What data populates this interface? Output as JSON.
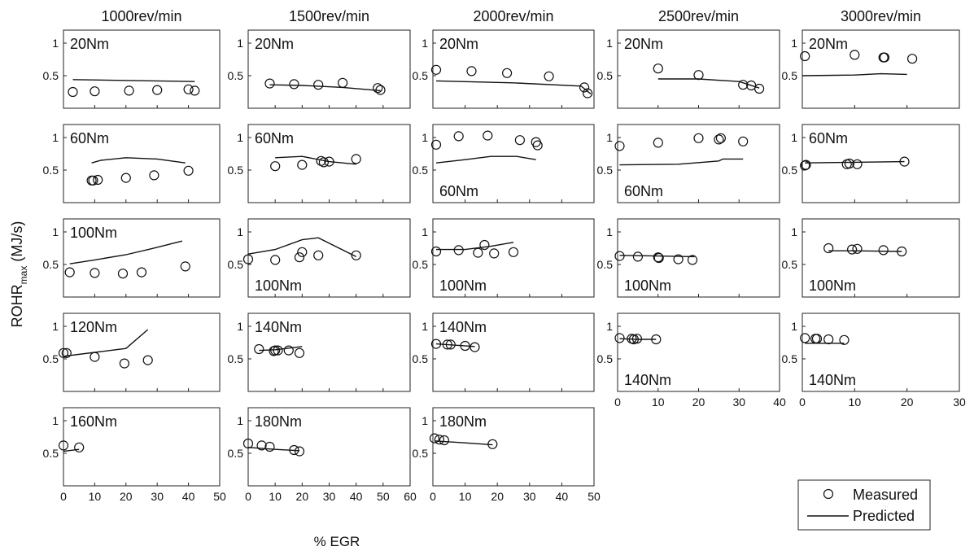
{
  "figure": {
    "ylabel_main": "ROHR",
    "ylabel_sub": "max",
    "ylabel_unit": " (MJ/s)",
    "xlabel": "% EGR",
    "legend": {
      "measured": "Measured",
      "predicted": "Predicted"
    }
  },
  "chart_data": [
    {
      "type": "scatter",
      "speed": "1000rev/min",
      "load": "20Nm",
      "label_pos": "top",
      "xlim": [
        0,
        50
      ],
      "ylim": [
        0,
        1.2
      ],
      "measured": [
        [
          3,
          0.25
        ],
        [
          10,
          0.26
        ],
        [
          21,
          0.27
        ],
        [
          30,
          0.28
        ],
        [
          40,
          0.29
        ],
        [
          42,
          0.27
        ]
      ],
      "predicted": [
        [
          3,
          0.44
        ],
        [
          42,
          0.41
        ]
      ]
    },
    {
      "type": "scatter",
      "speed": "1500rev/min",
      "load": "20Nm",
      "label_pos": "top",
      "xlim": [
        0,
        60
      ],
      "ylim": [
        0,
        1.2
      ],
      "measured": [
        [
          8,
          0.38
        ],
        [
          17,
          0.37
        ],
        [
          26,
          0.36
        ],
        [
          35,
          0.39
        ],
        [
          48,
          0.31
        ],
        [
          49,
          0.28
        ]
      ],
      "predicted": [
        [
          8,
          0.36
        ],
        [
          20,
          0.35
        ],
        [
          35,
          0.32
        ],
        [
          49,
          0.27
        ]
      ]
    },
    {
      "type": "scatter",
      "speed": "2000rev/min",
      "load": "20Nm",
      "label_pos": "top",
      "xlim": [
        0,
        50
      ],
      "ylim": [
        0,
        1.2
      ],
      "measured": [
        [
          1,
          0.59
        ],
        [
          12,
          0.57
        ],
        [
          23,
          0.54
        ],
        [
          36,
          0.49
        ],
        [
          47,
          0.32
        ],
        [
          48,
          0.23
        ]
      ],
      "predicted": [
        [
          1,
          0.42
        ],
        [
          25,
          0.39
        ],
        [
          46,
          0.34
        ],
        [
          49,
          0.22
        ]
      ]
    },
    {
      "type": "scatter",
      "speed": "2500rev/min",
      "load": "20Nm",
      "label_pos": "top",
      "xlim": [
        0,
        40
      ],
      "ylim": [
        0,
        1.2
      ],
      "measured": [
        [
          10,
          0.61
        ],
        [
          20,
          0.51
        ],
        [
          31,
          0.36
        ],
        [
          33,
          0.35
        ],
        [
          35,
          0.3
        ]
      ],
      "predicted": [
        [
          10,
          0.45
        ],
        [
          20,
          0.45
        ],
        [
          30,
          0.41
        ],
        [
          35,
          0.31
        ]
      ]
    },
    {
      "type": "scatter",
      "speed": "3000rev/min",
      "load": "20Nm",
      "label_pos": "top",
      "xlim": [
        0,
        30
      ],
      "ylim": [
        0,
        1.2
      ],
      "measured": [
        [
          0.5,
          0.8
        ],
        [
          10,
          0.82
        ],
        [
          15.5,
          0.78
        ],
        [
          15.7,
          0.78
        ],
        [
          21,
          0.76
        ]
      ],
      "predicted": [
        [
          0,
          0.5
        ],
        [
          10,
          0.51
        ],
        [
          15,
          0.53
        ],
        [
          20,
          0.52
        ]
      ]
    },
    {
      "type": "scatter",
      "speed": "1000rev/min",
      "load": "60Nm",
      "label_pos": "top",
      "xlim": [
        0,
        50
      ],
      "ylim": [
        0,
        1.2
      ],
      "measured": [
        [
          9,
          0.34
        ],
        [
          9.5,
          0.34
        ],
        [
          11,
          0.35
        ],
        [
          20,
          0.38
        ],
        [
          29,
          0.42
        ],
        [
          40,
          0.49
        ]
      ],
      "predicted": [
        [
          9,
          0.61
        ],
        [
          12,
          0.65
        ],
        [
          20,
          0.69
        ],
        [
          30,
          0.67
        ],
        [
          39,
          0.61
        ]
      ]
    },
    {
      "type": "scatter",
      "speed": "1500rev/min",
      "load": "60Nm",
      "label_pos": "top",
      "xlim": [
        0,
        60
      ],
      "ylim": [
        0,
        1.2
      ],
      "measured": [
        [
          10,
          0.56
        ],
        [
          20,
          0.58
        ],
        [
          27,
          0.64
        ],
        [
          28,
          0.62
        ],
        [
          30,
          0.63
        ],
        [
          40,
          0.67
        ]
      ],
      "predicted": [
        [
          10,
          0.69
        ],
        [
          20,
          0.71
        ],
        [
          30,
          0.63
        ],
        [
          40,
          0.59
        ]
      ]
    },
    {
      "type": "scatter",
      "speed": "2000rev/min",
      "load": "60Nm",
      "label_pos": "bottom",
      "xlim": [
        0,
        50
      ],
      "ylim": [
        0,
        1.2
      ],
      "measured": [
        [
          1,
          0.89
        ],
        [
          8,
          1.02
        ],
        [
          17,
          1.03
        ],
        [
          27,
          0.96
        ],
        [
          32,
          0.93
        ],
        [
          32.5,
          0.88
        ]
      ],
      "predicted": [
        [
          1,
          0.61
        ],
        [
          10,
          0.66
        ],
        [
          18,
          0.71
        ],
        [
          26,
          0.71
        ],
        [
          32,
          0.66
        ]
      ]
    },
    {
      "type": "scatter",
      "speed": "2500rev/min",
      "load": "60Nm",
      "label_pos": "bottom",
      "xlim": [
        0,
        40
      ],
      "ylim": [
        0,
        1.2
      ],
      "measured": [
        [
          0.5,
          0.87
        ],
        [
          10,
          0.92
        ],
        [
          20,
          0.99
        ],
        [
          25,
          0.97
        ],
        [
          25.5,
          0.99
        ],
        [
          31,
          0.94
        ]
      ],
      "predicted": [
        [
          0.5,
          0.58
        ],
        [
          15,
          0.59
        ],
        [
          25,
          0.64
        ],
        [
          26,
          0.67
        ],
        [
          31,
          0.67
        ]
      ]
    },
    {
      "type": "scatter",
      "speed": "3000rev/min",
      "load": "60Nm",
      "label_pos": "top",
      "xlim": [
        0,
        30
      ],
      "ylim": [
        0,
        1.2
      ],
      "measured": [
        [
          0.5,
          0.57
        ],
        [
          0.7,
          0.58
        ],
        [
          8.5,
          0.59
        ],
        [
          9,
          0.6
        ],
        [
          10.5,
          0.59
        ],
        [
          19.5,
          0.63
        ]
      ],
      "predicted": [
        [
          0.5,
          0.61
        ],
        [
          10,
          0.62
        ],
        [
          19.5,
          0.63
        ]
      ]
    },
    {
      "type": "scatter",
      "speed": "1000rev/min",
      "load": "100Nm",
      "label_pos": "top",
      "xlim": [
        0,
        50
      ],
      "ylim": [
        0,
        1.2
      ],
      "measured": [
        [
          2,
          0.38
        ],
        [
          10,
          0.37
        ],
        [
          19,
          0.36
        ],
        [
          25,
          0.38
        ],
        [
          39,
          0.47
        ]
      ],
      "predicted": [
        [
          2,
          0.51
        ],
        [
          10,
          0.57
        ],
        [
          20,
          0.65
        ],
        [
          28,
          0.74
        ],
        [
          38,
          0.86
        ]
      ]
    },
    {
      "type": "scatter",
      "speed": "1500rev/min",
      "load": "100Nm",
      "label_pos": "bottom",
      "xlim": [
        0,
        60
      ],
      "ylim": [
        0,
        1.2
      ],
      "measured": [
        [
          0,
          0.58
        ],
        [
          10,
          0.57
        ],
        [
          19,
          0.61
        ],
        [
          20,
          0.69
        ],
        [
          26,
          0.64
        ],
        [
          40,
          0.64
        ]
      ],
      "predicted": [
        [
          0,
          0.66
        ],
        [
          10,
          0.73
        ],
        [
          20,
          0.88
        ],
        [
          26,
          0.91
        ],
        [
          40,
          0.62
        ]
      ]
    },
    {
      "type": "scatter",
      "speed": "2000rev/min",
      "load": "100Nm",
      "label_pos": "bottom",
      "xlim": [
        0,
        50
      ],
      "ylim": [
        0,
        1.2
      ],
      "measured": [
        [
          1,
          0.7
        ],
        [
          8,
          0.72
        ],
        [
          14,
          0.68
        ],
        [
          16,
          0.8
        ],
        [
          19,
          0.67
        ],
        [
          25,
          0.69
        ]
      ],
      "predicted": [
        [
          1,
          0.73
        ],
        [
          10,
          0.73
        ],
        [
          18,
          0.78
        ],
        [
          25,
          0.84
        ]
      ]
    },
    {
      "type": "scatter",
      "speed": "2500rev/min",
      "load": "100Nm",
      "label_pos": "bottom",
      "xlim": [
        0,
        40
      ],
      "ylim": [
        0,
        1.2
      ],
      "measured": [
        [
          0.5,
          0.63
        ],
        [
          5,
          0.62
        ],
        [
          10,
          0.61
        ],
        [
          10.2,
          0.6
        ],
        [
          15,
          0.58
        ],
        [
          18.5,
          0.57
        ]
      ],
      "predicted": [
        [
          0.5,
          0.64
        ],
        [
          10,
          0.63
        ],
        [
          19,
          0.62
        ]
      ]
    },
    {
      "type": "scatter",
      "speed": "3000rev/min",
      "load": "100Nm",
      "label_pos": "bottom",
      "xlim": [
        0,
        30
      ],
      "ylim": [
        0,
        1.2
      ],
      "measured": [
        [
          5,
          0.75
        ],
        [
          9.5,
          0.73
        ],
        [
          10.5,
          0.74
        ],
        [
          15.5,
          0.72
        ],
        [
          19,
          0.7
        ]
      ],
      "predicted": [
        [
          5,
          0.71
        ],
        [
          10,
          0.71
        ],
        [
          19,
          0.7
        ]
      ]
    },
    {
      "type": "scatter",
      "speed": "1000rev/min",
      "load": "120Nm",
      "label_pos": "top",
      "xlim": [
        0,
        50
      ],
      "ylim": [
        0,
        1.2
      ],
      "measured": [
        [
          0,
          0.59
        ],
        [
          1,
          0.59
        ],
        [
          10,
          0.53
        ],
        [
          19.5,
          0.43
        ],
        [
          27,
          0.48
        ]
      ],
      "predicted": [
        [
          0,
          0.54
        ],
        [
          10,
          0.6
        ],
        [
          20,
          0.66
        ],
        [
          27,
          0.95
        ]
      ]
    },
    {
      "type": "scatter",
      "speed": "1500rev/min",
      "load": "140Nm",
      "label_pos": "top",
      "xlim": [
        0,
        60
      ],
      "ylim": [
        0,
        1.2
      ],
      "measured": [
        [
          4,
          0.65
        ],
        [
          9.5,
          0.62
        ],
        [
          10,
          0.63
        ],
        [
          11,
          0.63
        ],
        [
          15,
          0.63
        ],
        [
          19,
          0.59
        ]
      ],
      "predicted": [
        [
          4,
          0.63
        ],
        [
          10,
          0.64
        ],
        [
          20,
          0.69
        ]
      ]
    },
    {
      "type": "scatter",
      "speed": "2000rev/min",
      "load": "140Nm",
      "label_pos": "top",
      "xlim": [
        0,
        50
      ],
      "ylim": [
        0,
        1.2
      ],
      "measured": [
        [
          1,
          0.73
        ],
        [
          4.5,
          0.72
        ],
        [
          5.5,
          0.72
        ],
        [
          10,
          0.7
        ],
        [
          13,
          0.68
        ]
      ],
      "predicted": [
        [
          1,
          0.73
        ],
        [
          7,
          0.71
        ],
        [
          13,
          0.69
        ]
      ]
    },
    {
      "type": "scatter",
      "speed": "2500rev/min",
      "load": "140Nm",
      "label_pos": "bottom",
      "xlim": [
        0,
        40
      ],
      "ylim": [
        0,
        1.2
      ],
      "measured": [
        [
          0.5,
          0.82
        ],
        [
          3.5,
          0.81
        ],
        [
          4,
          0.8
        ],
        [
          4.8,
          0.81
        ],
        [
          9.5,
          0.8
        ]
      ],
      "predicted": [
        [
          0.5,
          0.81
        ],
        [
          5,
          0.8
        ],
        [
          9.5,
          0.8
        ]
      ]
    },
    {
      "type": "scatter",
      "speed": "3000rev/min",
      "load": "140Nm",
      "label_pos": "bottom",
      "xlim": [
        0,
        30
      ],
      "ylim": [
        0,
        1.2
      ],
      "measured": [
        [
          0.5,
          0.82
        ],
        [
          2.5,
          0.81
        ],
        [
          2.8,
          0.81
        ],
        [
          5,
          0.8
        ],
        [
          8,
          0.79
        ]
      ],
      "predicted": [
        [
          0.5,
          0.74
        ],
        [
          4,
          0.74
        ],
        [
          8,
          0.74
        ]
      ]
    },
    {
      "type": "scatter",
      "speed": "1000rev/min",
      "load": "160Nm",
      "label_pos": "top",
      "xlim": [
        0,
        50
      ],
      "ylim": [
        0,
        1.2
      ],
      "measured": [
        [
          0,
          0.62
        ],
        [
          5,
          0.59
        ]
      ],
      "predicted": [
        [
          0,
          0.53
        ],
        [
          5,
          0.56
        ]
      ]
    },
    {
      "type": "scatter",
      "speed": "1500rev/min",
      "load": "180Nm",
      "label_pos": "top",
      "xlim": [
        0,
        60
      ],
      "ylim": [
        0,
        1.2
      ],
      "measured": [
        [
          0,
          0.65
        ],
        [
          5,
          0.62
        ],
        [
          8,
          0.6
        ],
        [
          17,
          0.55
        ],
        [
          19,
          0.53
        ]
      ],
      "predicted": [
        [
          0,
          0.59
        ],
        [
          10,
          0.56
        ],
        [
          19,
          0.54
        ]
      ]
    },
    {
      "type": "scatter",
      "speed": "2000rev/min",
      "load": "180Nm",
      "label_pos": "top",
      "xlim": [
        0,
        50
      ],
      "ylim": [
        0,
        1.2
      ],
      "measured": [
        [
          0.5,
          0.73
        ],
        [
          2,
          0.71
        ],
        [
          3.5,
          0.7
        ],
        [
          18.5,
          0.64
        ]
      ],
      "predicted": [
        [
          0.5,
          0.69
        ],
        [
          10,
          0.66
        ],
        [
          18.5,
          0.63
        ]
      ]
    }
  ]
}
